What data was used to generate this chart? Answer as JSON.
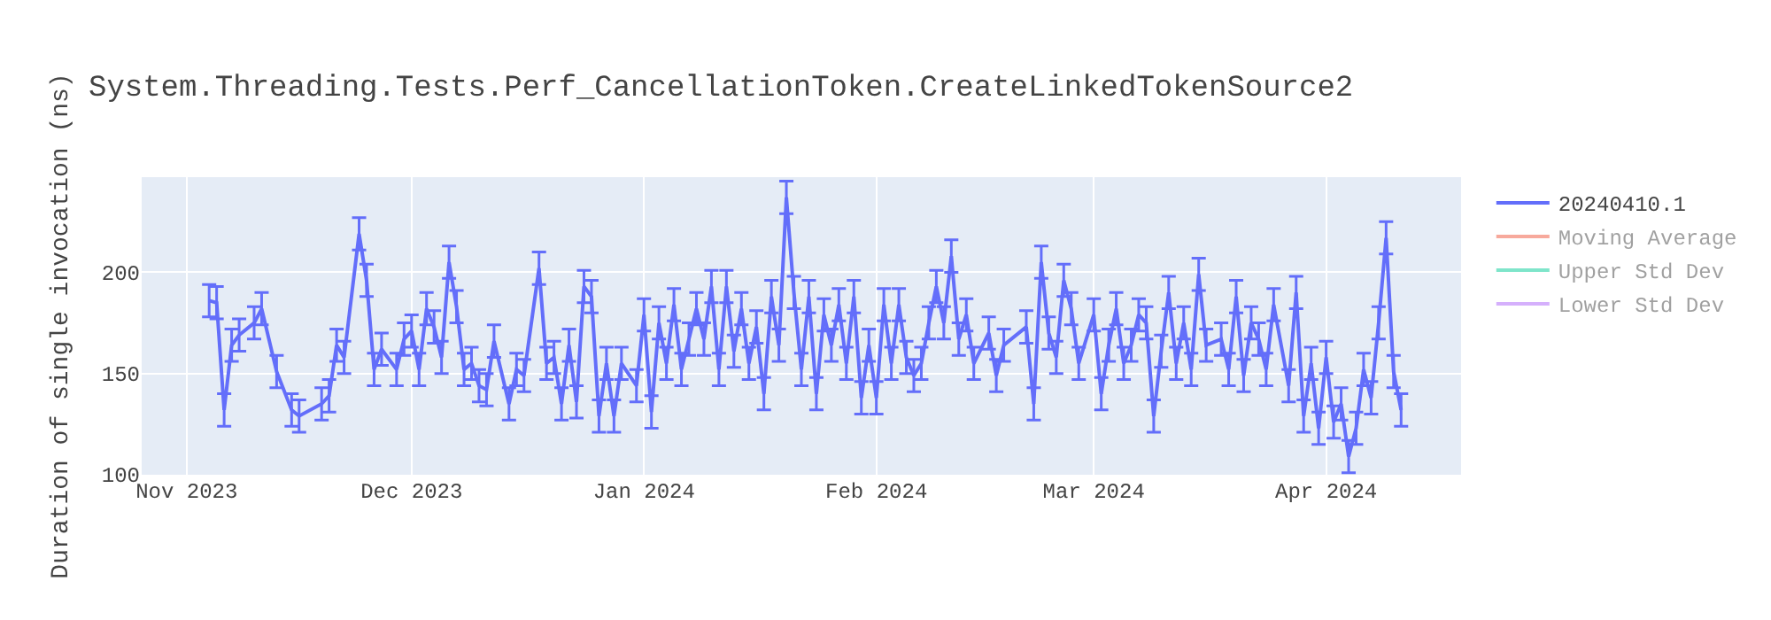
{
  "chart_data": {
    "type": "line",
    "title": "System.Threading.Tests.Perf_CancellationToken.CreateLinkedTokenSource2",
    "ylabel": "Duration of single invocation (ns)",
    "x": [
      "2023-11-04",
      "2023-11-05",
      "2023-11-06",
      "2023-11-07",
      "2023-11-08",
      "2023-11-10",
      "2023-11-11",
      "2023-11-13",
      "2023-11-15",
      "2023-11-16",
      "2023-11-19",
      "2023-11-20",
      "2023-11-21",
      "2023-11-22",
      "2023-11-24",
      "2023-11-25",
      "2023-11-26",
      "2023-11-27",
      "2023-11-29",
      "2023-11-30",
      "2023-12-01",
      "2023-12-02",
      "2023-12-03",
      "2023-12-04",
      "2023-12-05",
      "2023-12-06",
      "2023-12-07",
      "2023-12-08",
      "2023-12-09",
      "2023-12-10",
      "2023-12-11",
      "2023-12-12",
      "2023-12-14",
      "2023-12-15",
      "2023-12-16",
      "2023-12-18",
      "2023-12-19",
      "2023-12-20",
      "2023-12-21",
      "2023-12-22",
      "2023-12-23",
      "2023-12-24",
      "2023-12-25",
      "2023-12-26",
      "2023-12-27",
      "2023-12-28",
      "2023-12-29",
      "2023-12-31",
      "2024-01-01",
      "2024-01-02",
      "2024-01-03",
      "2024-01-04",
      "2024-01-05",
      "2024-01-06",
      "2024-01-07",
      "2024-01-08",
      "2024-01-09",
      "2024-01-10",
      "2024-01-11",
      "2024-01-12",
      "2024-01-13",
      "2024-01-14",
      "2024-01-15",
      "2024-01-16",
      "2024-01-17",
      "2024-01-18",
      "2024-01-19",
      "2024-01-20",
      "2024-01-21",
      "2024-01-22",
      "2024-01-23",
      "2024-01-24",
      "2024-01-25",
      "2024-01-26",
      "2024-01-27",
      "2024-01-28",
      "2024-01-29",
      "2024-01-30",
      "2024-01-31",
      "2024-02-01",
      "2024-02-02",
      "2024-02-03",
      "2024-02-04",
      "2024-02-05",
      "2024-02-06",
      "2024-02-07",
      "2024-02-08",
      "2024-02-09",
      "2024-02-10",
      "2024-02-11",
      "2024-02-12",
      "2024-02-13",
      "2024-02-14",
      "2024-02-16",
      "2024-02-17",
      "2024-02-18",
      "2024-02-21",
      "2024-02-22",
      "2024-02-23",
      "2024-02-24",
      "2024-02-25",
      "2024-02-26",
      "2024-02-27",
      "2024-02-28",
      "2024-03-01",
      "2024-03-02",
      "2024-03-03",
      "2024-03-04",
      "2024-03-05",
      "2024-03-06",
      "2024-03-07",
      "2024-03-08",
      "2024-03-09",
      "2024-03-10",
      "2024-03-11",
      "2024-03-12",
      "2024-03-13",
      "2024-03-14",
      "2024-03-15",
      "2024-03-16",
      "2024-03-18",
      "2024-03-19",
      "2024-03-20",
      "2024-03-21",
      "2024-03-22",
      "2024-03-23",
      "2024-03-24",
      "2024-03-25",
      "2024-03-27",
      "2024-03-28",
      "2024-03-29",
      "2024-03-30",
      "2024-03-31",
      "2024-04-01",
      "2024-04-02",
      "2024-04-03",
      "2024-04-04",
      "2024-04-05",
      "2024-04-06",
      "2024-04-07",
      "2024-04-08",
      "2024-04-09",
      "2024-04-10",
      "2024-04-11"
    ],
    "series": [
      {
        "name": "20240410.1",
        "color": "#636efa",
        "values": [
          186,
          185,
          132,
          164,
          169,
          175,
          182,
          151,
          132,
          129,
          135,
          139,
          164,
          158,
          219,
          196,
          152,
          162,
          152,
          167,
          171,
          152,
          182,
          173,
          158,
          205,
          183,
          152,
          155,
          144,
          142,
          166,
          135,
          152,
          149,
          202,
          155,
          158,
          135,
          164,
          136,
          193,
          188,
          129,
          155,
          129,
          155,
          144,
          179,
          131,
          175,
          155,
          184,
          152,
          167,
          182,
          167,
          193,
          152,
          193,
          161,
          182,
          155,
          173,
          140,
          188,
          164,
          237,
          190,
          152,
          188,
          140,
          179,
          164,
          184,
          155,
          188,
          138,
          164,
          138,
          184,
          155,
          184,
          158,
          149,
          155,
          175,
          193,
          175,
          208,
          167,
          179,
          155,
          170,
          149,
          164,
          173,
          135,
          205,
          170,
          158,
          196,
          182,
          155,
          179,
          140,
          164,
          182,
          155,
          164,
          179,
          175,
          129,
          161,
          190,
          155,
          175,
          152,
          199,
          164,
          167,
          152,
          188,
          149,
          175,
          167,
          152,
          184,
          144,
          190,
          129,
          155,
          123,
          158,
          126,
          135,
          109,
          123,
          152,
          138,
          175,
          217,
          151,
          132
        ],
        "errors": [
          8,
          8,
          8,
          8,
          8,
          8,
          8,
          8,
          8,
          8,
          8,
          8,
          8,
          8,
          8,
          8,
          8,
          8,
          8,
          8,
          8,
          8,
          8,
          8,
          8,
          8,
          8,
          8,
          8,
          8,
          8,
          8,
          8,
          8,
          8,
          8,
          8,
          8,
          8,
          8,
          8,
          8,
          8,
          8,
          8,
          8,
          8,
          8,
          8,
          8,
          8,
          8,
          8,
          8,
          8,
          8,
          8,
          8,
          8,
          8,
          8,
          8,
          8,
          8,
          8,
          8,
          8,
          8,
          8,
          8,
          8,
          8,
          8,
          8,
          8,
          8,
          8,
          8,
          8,
          8,
          8,
          8,
          8,
          8,
          8,
          8,
          8,
          8,
          8,
          8,
          8,
          8,
          8,
          8,
          8,
          8,
          8,
          8,
          8,
          8,
          8,
          8,
          8,
          8,
          8,
          8,
          8,
          8,
          8,
          8,
          8,
          8,
          8,
          8,
          8,
          8,
          8,
          8,
          8,
          8,
          8,
          8,
          8,
          8,
          8,
          8,
          8,
          8,
          8,
          8,
          8,
          8,
          8,
          8,
          8,
          8,
          8,
          8,
          8,
          8,
          8,
          8,
          8,
          8
        ]
      },
      {
        "name": "Moving Average",
        "color": "#ef553b",
        "values": [
          null,
          null,
          null,
          null,
          null,
          null,
          null,
          null,
          null,
          null,
          null,
          null,
          null,
          null,
          null,
          null,
          null,
          null,
          null,
          null,
          null,
          null,
          null,
          null,
          null,
          null,
          null,
          null,
          null,
          null,
          null,
          null,
          null,
          null,
          null,
          null,
          null,
          null,
          null,
          null,
          null,
          null,
          null,
          null,
          null,
          null,
          null,
          null,
          null,
          null,
          null,
          null,
          null,
          null,
          null,
          null,
          null,
          null,
          null,
          null,
          null,
          null,
          null,
          null,
          null,
          null,
          null,
          null,
          null,
          null,
          null,
          null,
          null,
          null,
          null,
          null,
          null,
          null,
          null,
          null,
          null,
          null,
          null,
          null,
          null,
          null,
          null,
          null,
          null,
          null,
          null,
          null,
          null,
          null,
          null,
          null,
          null,
          null,
          null,
          null,
          null,
          null,
          null,
          null,
          null,
          null,
          null,
          null,
          null,
          null,
          null,
          null,
          null,
          null,
          null,
          null,
          null,
          null,
          null,
          null,
          null,
          null,
          null,
          null,
          null,
          null,
          null,
          null,
          null,
          null,
          null,
          null,
          null,
          null,
          null,
          null,
          null,
          null,
          null,
          null,
          null,
          null,
          null,
          null
        ]
      },
      {
        "name": "Upper Std Dev",
        "color": "#00cc96",
        "values": [
          null,
          null,
          null,
          null,
          null,
          null,
          null,
          null,
          null,
          null,
          null,
          null,
          null,
          null,
          null,
          null,
          null,
          null,
          null,
          null,
          null,
          null,
          null,
          null,
          null,
          null,
          null,
          null,
          null,
          null,
          null,
          null,
          null,
          null,
          null,
          null,
          null,
          null,
          null,
          null,
          null,
          null,
          null,
          null,
          null,
          null,
          null,
          null,
          null,
          null,
          null,
          null,
          null,
          null,
          null,
          null,
          null,
          null,
          null,
          null,
          null,
          null,
          null,
          null,
          null,
          null,
          null,
          null,
          null,
          null,
          null,
          null,
          null,
          null,
          null,
          null,
          null,
          null,
          null,
          null,
          null,
          null,
          null,
          null,
          null,
          null,
          null,
          null,
          null,
          null,
          null,
          null,
          null,
          null,
          null,
          null,
          null,
          null,
          null,
          null,
          null,
          null,
          null,
          null,
          null,
          null,
          null,
          null,
          null,
          null,
          null,
          null,
          null,
          null,
          null,
          null,
          null,
          null,
          null,
          null,
          null,
          null,
          null,
          null,
          null,
          null,
          null,
          null,
          null,
          null,
          null,
          null,
          null,
          null,
          null,
          null,
          null,
          null,
          null,
          null,
          null,
          null,
          null,
          null
        ]
      },
      {
        "name": "Lower Std Dev",
        "color": "#ab63fa",
        "values": [
          null,
          null,
          null,
          null,
          null,
          null,
          null,
          null,
          null,
          null,
          null,
          null,
          null,
          null,
          null,
          null,
          null,
          null,
          null,
          null,
          null,
          null,
          null,
          null,
          null,
          null,
          null,
          null,
          null,
          null,
          null,
          null,
          null,
          null,
          null,
          null,
          null,
          null,
          null,
          null,
          null,
          null,
          null,
          null,
          null,
          null,
          null,
          null,
          null,
          null,
          null,
          null,
          null,
          null,
          null,
          null,
          null,
          null,
          null,
          null,
          null,
          null,
          null,
          null,
          null,
          null,
          null,
          null,
          null,
          null,
          null,
          null,
          null,
          null,
          null,
          null,
          null,
          null,
          null,
          null,
          null,
          null,
          null,
          null,
          null,
          null,
          null,
          null,
          null,
          null,
          null,
          null,
          null,
          null,
          null,
          null,
          null,
          null,
          null,
          null,
          null,
          null,
          null,
          null,
          null,
          null,
          null,
          null,
          null,
          null,
          null,
          null,
          null,
          null,
          null,
          null,
          null,
          null,
          null,
          null,
          null,
          null,
          null,
          null,
          null,
          null,
          null,
          null,
          null,
          null,
          null,
          null,
          null,
          null,
          null,
          null,
          null,
          null,
          null,
          null,
          null,
          null,
          null,
          null
        ]
      }
    ],
    "xlim": [
      "2023-10-26",
      "2024-04-19"
    ],
    "xticks": [
      {
        "value": "2023-11-01",
        "label": "Nov 2023"
      },
      {
        "value": "2023-12-01",
        "label": "Dec 2023"
      },
      {
        "value": "2024-01-01",
        "label": "Jan 2024"
      },
      {
        "value": "2024-02-01",
        "label": "Feb 2024"
      },
      {
        "value": "2024-03-01",
        "label": "Mar 2024"
      },
      {
        "value": "2024-04-01",
        "label": "Apr 2024"
      }
    ],
    "ylim": [
      100,
      247
    ],
    "yticks": [
      100,
      150,
      200
    ],
    "grid": true,
    "legend": "top right",
    "marker": "none",
    "line_style": "solid"
  }
}
